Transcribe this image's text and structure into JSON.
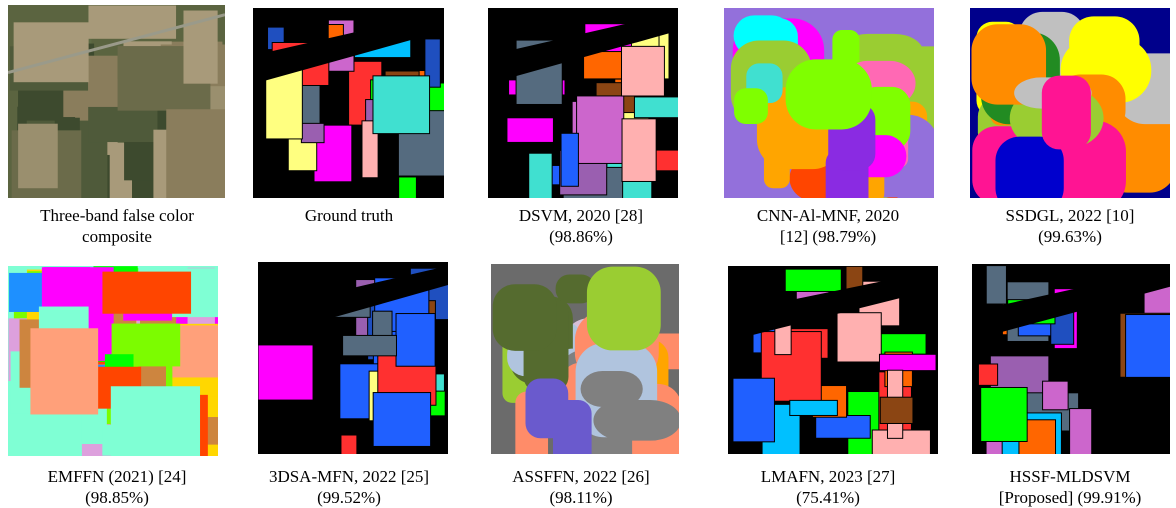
{
  "panels": [
    {
      "caption": [
        "Three-band false color",
        "composite"
      ]
    },
    {
      "caption": [
        "Ground truth"
      ]
    },
    {
      "caption": [
        "DSVM, 2020 [28]",
        "(98.86%)"
      ]
    },
    {
      "caption": [
        "CNN-Al-MNF, 2020",
        "[12] (98.79%)"
      ]
    },
    {
      "caption": [
        "SSDGL, 2022 [10]",
        "(99.63%)"
      ]
    },
    {
      "caption": [
        "EMFFN (2021) [24]",
        "(98.85%)"
      ]
    },
    {
      "caption": [
        "3DSA-MFN, 2022 [25]",
        "(99.52%)"
      ]
    },
    {
      "caption": [
        "ASSFFN, 2022 [26]",
        "(98.11%)"
      ]
    },
    {
      "caption": [
        "LMAFN, 2023 [27]",
        "(75.41%)"
      ]
    },
    {
      "caption": [
        "HSSF-MLDSVM",
        "[Proposed] (99.91%)"
      ]
    }
  ]
}
